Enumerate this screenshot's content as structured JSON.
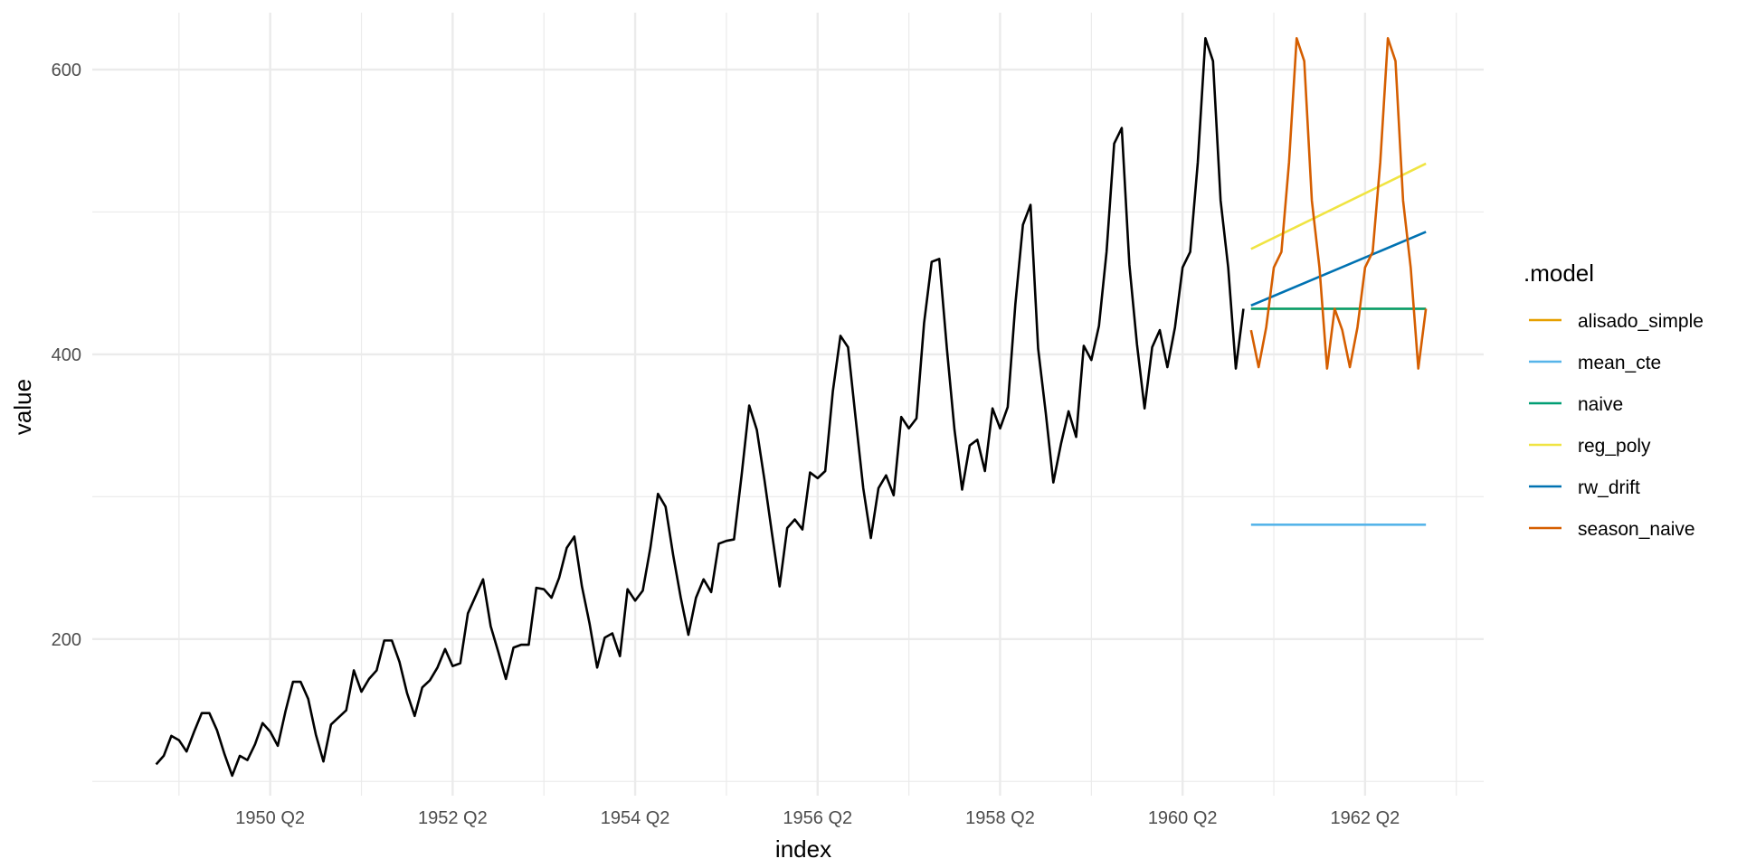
{
  "chart_data": {
    "type": "line",
    "xlabel": "index",
    "ylabel": "value",
    "ylim": [
      90,
      640
    ],
    "xlim": [
      1948.3,
      1963.55
    ],
    "grid": true,
    "legend_position": "right",
    "legend_title": ".model",
    "x_ticks": [
      {
        "x": 1950.25,
        "label": "1950 Q2"
      },
      {
        "x": 1952.25,
        "label": "1952 Q2"
      },
      {
        "x": 1954.25,
        "label": "1954 Q2"
      },
      {
        "x": 1956.25,
        "label": "1956 Q2"
      },
      {
        "x": 1958.25,
        "label": "1958 Q2"
      },
      {
        "x": 1960.25,
        "label": "1960 Q2"
      },
      {
        "x": 1962.25,
        "label": "1962 Q2"
      }
    ],
    "y_ticks": [
      {
        "y": 200,
        "label": "200"
      },
      {
        "y": 400,
        "label": "400"
      },
      {
        "y": 600,
        "label": "600"
      }
    ],
    "history": {
      "color": "#000000",
      "start": 1949.0,
      "step": 0.08333333,
      "values": [
        112,
        118,
        132,
        129,
        121,
        135,
        148,
        148,
        136,
        119,
        104,
        118,
        115,
        126,
        141,
        135,
        125,
        149,
        170,
        170,
        158,
        133,
        114,
        140,
        145,
        150,
        178,
        163,
        172,
        178,
        199,
        199,
        184,
        162,
        146,
        166,
        171,
        180,
        193,
        181,
        183,
        218,
        230,
        242,
        209,
        191,
        172,
        194,
        196,
        196,
        236,
        235,
        229,
        243,
        264,
        272,
        237,
        211,
        180,
        201,
        204,
        188,
        235,
        227,
        234,
        264,
        302,
        293,
        259,
        229,
        203,
        229,
        242,
        233,
        267,
        269,
        270,
        315,
        364,
        347,
        312,
        274,
        237,
        278,
        284,
        277,
        317,
        313,
        318,
        374,
        413,
        405,
        355,
        306,
        271,
        306,
        315,
        301,
        356,
        348,
        355,
        422,
        465,
        467,
        404,
        347,
        305,
        336,
        340,
        318,
        362,
        348,
        363,
        435,
        491,
        505,
        404,
        359,
        310,
        337,
        360,
        342,
        406,
        396,
        420,
        472,
        548,
        559,
        463,
        407,
        362,
        405,
        417,
        391,
        419,
        461,
        472,
        535,
        622,
        606,
        508,
        461,
        390,
        432
      ]
    },
    "series": [
      {
        "name": "alisado_simple",
        "color": "#E69F00",
        "x": [
          1961.0,
          1962.917
        ],
        "values": [
          432,
          432
        ]
      },
      {
        "name": "mean_cte",
        "color": "#56B4E9",
        "x": [
          1961.0,
          1962.917
        ],
        "values": [
          280.3,
          280.3
        ]
      },
      {
        "name": "naive",
        "color": "#009E73",
        "x": [
          1961.0,
          1962.917
        ],
        "values": [
          432,
          432
        ]
      },
      {
        "name": "reg_poly",
        "color": "#F0E442",
        "x": [
          1961.0,
          1962.917
        ],
        "values": [
          474,
          534
        ]
      },
      {
        "name": "rw_drift",
        "color": "#0072B2",
        "x": [
          1961.0,
          1962.917
        ],
        "values": [
          434.3,
          486
        ]
      },
      {
        "name": "season_naive",
        "color": "#D55E00",
        "start": 1961.0,
        "step": 0.08333333,
        "values": [
          417,
          391,
          419,
          461,
          472,
          535,
          622,
          606,
          508,
          461,
          390,
          432,
          417,
          391,
          419,
          461,
          472,
          535,
          622,
          606,
          508,
          461,
          390,
          432
        ]
      }
    ]
  }
}
